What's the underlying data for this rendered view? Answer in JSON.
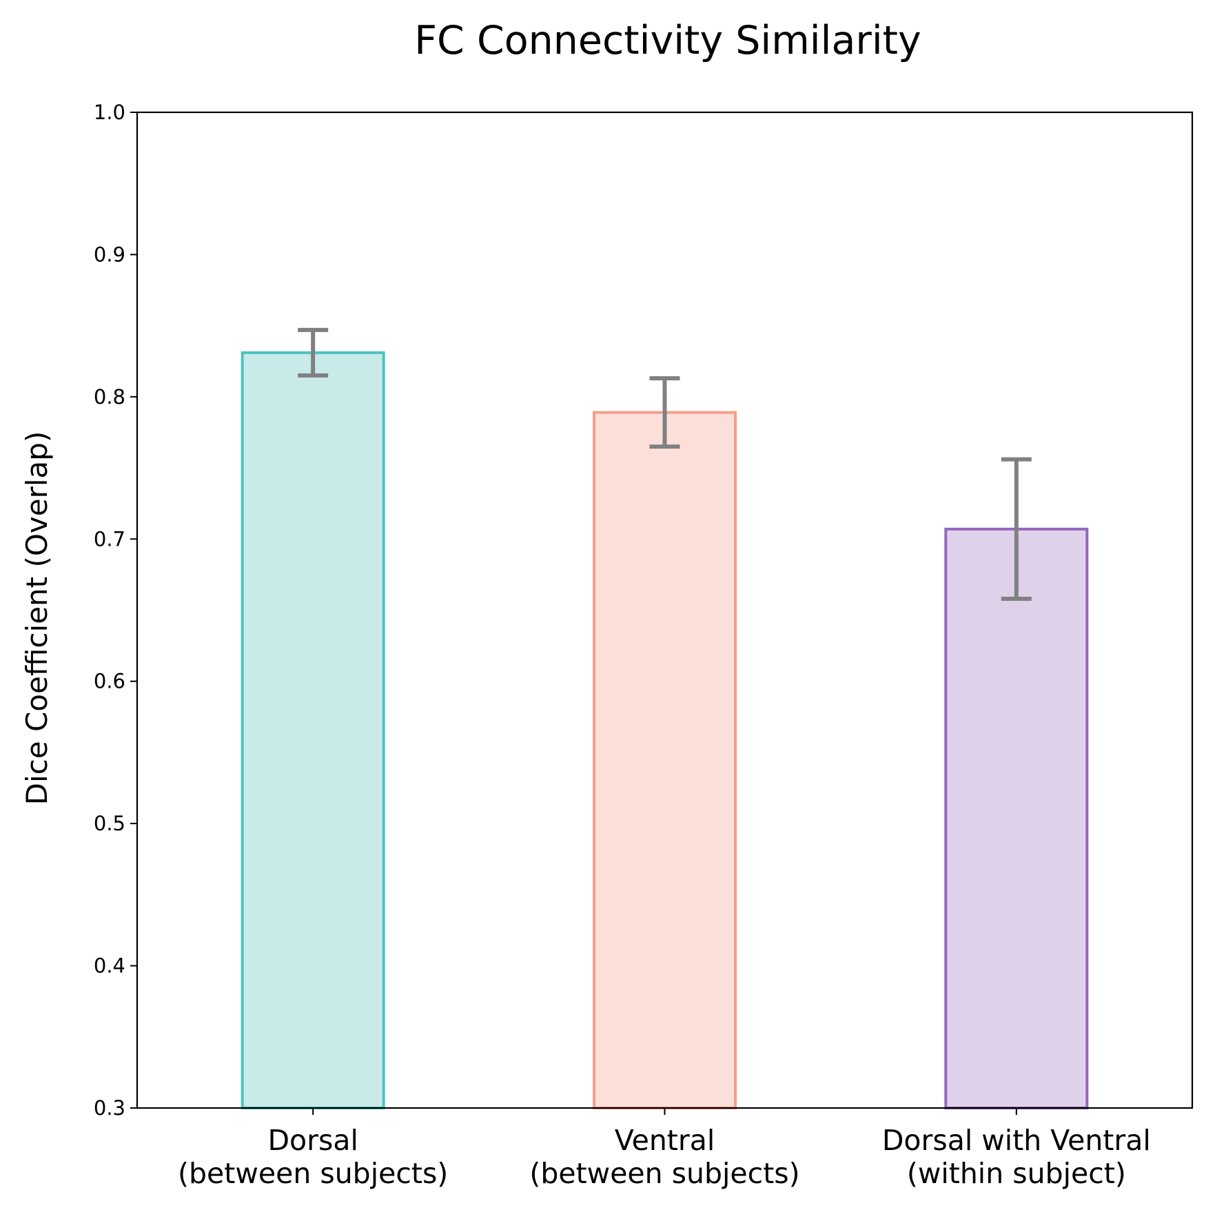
{
  "chart_data": {
    "type": "bar",
    "title": "FC Connectivity Similarity",
    "xlabel": "",
    "ylabel": "Dice Coefficient (Overlap)",
    "ylim": [
      0.3,
      1.0
    ],
    "yticks": [
      "0.3",
      "0.4",
      "0.5",
      "0.6",
      "0.7",
      "0.8",
      "0.9",
      "1.0"
    ],
    "grid": false,
    "categories": [
      [
        "Dorsal",
        "(between subjects)"
      ],
      [
        "Ventral",
        "(between subjects)"
      ],
      [
        "Dorsal with Ventral",
        "(within subject)"
      ]
    ],
    "values": [
      0.831,
      0.789,
      0.707
    ],
    "errors": [
      0.016,
      0.024,
      0.049
    ],
    "colors": {
      "fill": [
        "#c8ebea",
        "#fddfd9",
        "#dfd1ea"
      ],
      "edge": [
        "#4fc2c2",
        "#f59d8c",
        "#9467bd"
      ],
      "error_bar": "#808080"
    }
  }
}
